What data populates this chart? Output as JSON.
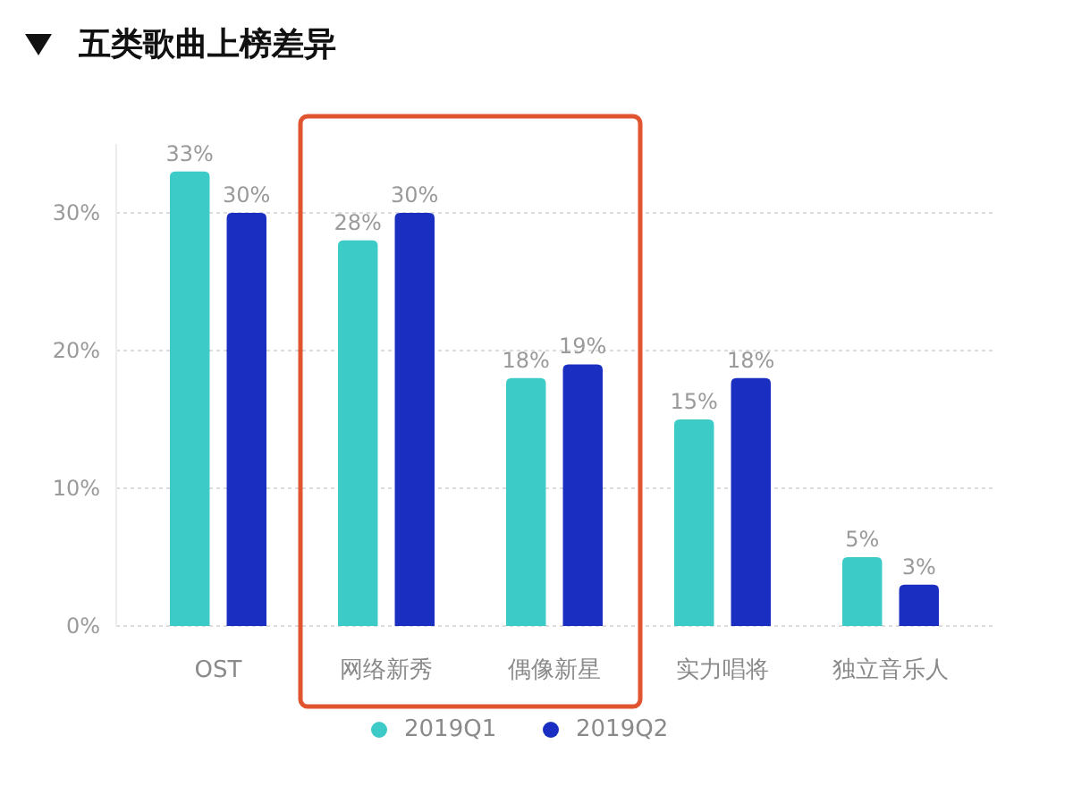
{
  "chart_data": {
    "type": "bar",
    "title": "五类歌曲上榜差异",
    "categories": [
      "OST",
      "网络新秀",
      "偶像新星",
      "实力唱将",
      "独立音乐人"
    ],
    "series": [
      {
        "name": "2019Q1",
        "color": "#3ccbc6",
        "values": [
          33,
          28,
          18,
          15,
          5
        ],
        "value_labels": [
          "33%",
          "28%",
          "18%",
          "15%",
          "5%"
        ]
      },
      {
        "name": "2019Q2",
        "color": "#1a2ec2",
        "values": [
          30,
          30,
          19,
          18,
          3
        ],
        "value_labels": [
          "30%",
          "30%",
          "19%",
          "18%",
          "3%"
        ]
      }
    ],
    "ylim": [
      0,
      35
    ],
    "yticks": [
      {
        "value": 0,
        "label": "0%"
      },
      {
        "value": 10,
        "label": "10%"
      },
      {
        "value": 20,
        "label": "20%"
      },
      {
        "value": 30,
        "label": "30%"
      }
    ],
    "grid": "y",
    "legend": "bottom"
  }
}
